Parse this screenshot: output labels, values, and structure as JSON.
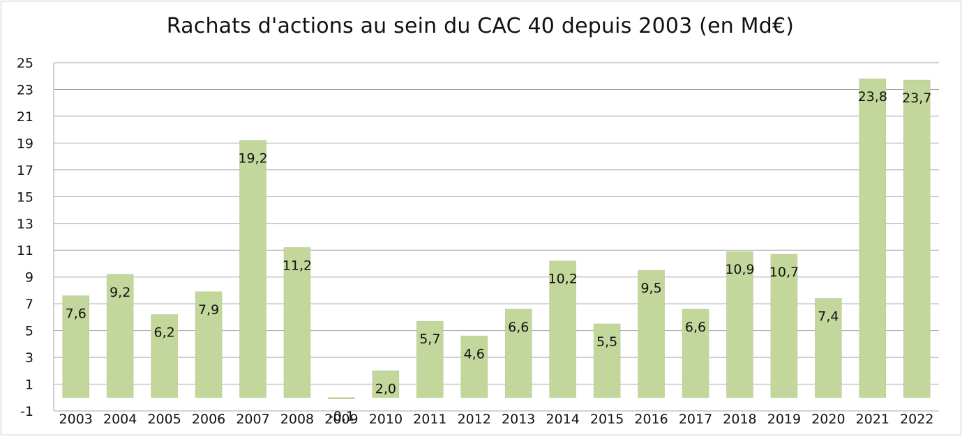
{
  "chart_data": {
    "type": "bar",
    "title": "Rachats d'actions au sein du CAC 40 depuis 2003 (en Md€)",
    "xlabel": "",
    "ylabel": "",
    "ylim": [
      -1,
      25
    ],
    "yticks": [
      "25",
      "23",
      "21",
      "19",
      "17",
      "15",
      "13",
      "11",
      "9",
      "7",
      "5",
      "3",
      "1",
      "-1"
    ],
    "grid": true,
    "legend": "none",
    "bar_color": "#c3d69b",
    "categories": [
      "2003",
      "2004",
      "2005",
      "2006",
      "2007",
      "2008",
      "2009",
      "2010",
      "2011",
      "2012",
      "2013",
      "2014",
      "2015",
      "2016",
      "2017",
      "2018",
      "2019",
      "2020",
      "2021",
      "2022"
    ],
    "values": [
      7.6,
      9.2,
      6.2,
      7.9,
      19.2,
      11.2,
      -0.1,
      2.0,
      5.7,
      4.6,
      6.6,
      10.2,
      5.5,
      9.5,
      6.6,
      10.9,
      10.7,
      7.4,
      23.8,
      23.7
    ],
    "data_labels": [
      "7,6",
      "9,2",
      "6,2",
      "7,9",
      "19,2",
      "11,2",
      "-0,1",
      "2,0",
      "5,7",
      "4,6",
      "6,6",
      "10,2",
      "5,5",
      "9,5",
      "6,6",
      "10,9",
      "10,7",
      "7,4",
      "23,8",
      "23,7"
    ]
  }
}
